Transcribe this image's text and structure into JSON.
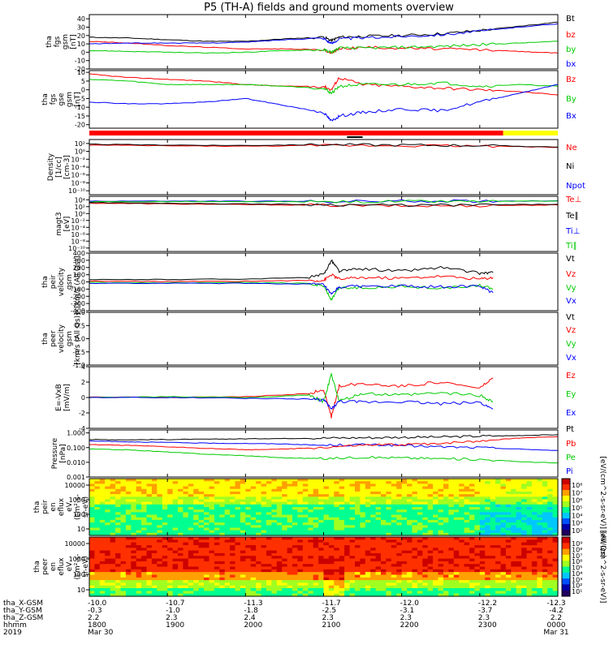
{
  "title": "P5 (TH-A) fields and ground moments overview",
  "chart_data": [
    {
      "type": "line",
      "panel": "fgs-gsm",
      "ylabel_lines": [
        "tha",
        "fgs",
        "gsm",
        "[nT]"
      ],
      "ylim": [
        -20,
        45
      ],
      "yticks": [
        -20,
        -10,
        0,
        10,
        20,
        30,
        40
      ],
      "legend": [
        {
          "label": "Bt",
          "color": "#000000"
        },
        {
          "label": "bz",
          "color": "#ff0000"
        },
        {
          "label": "by",
          "color": "#00cc00"
        },
        {
          "label": "bx",
          "color": "#0000ff"
        }
      ],
      "x_hours": [
        18.0,
        18.5,
        19.0,
        19.5,
        20.0,
        20.5,
        21.0,
        21.1,
        21.2,
        21.5,
        22.0,
        22.5,
        23.0,
        23.5,
        24.0
      ],
      "series": [
        {
          "name": "Bt",
          "color": "#000000",
          "values": [
            18,
            17,
            15,
            13,
            13,
            16,
            18,
            14,
            18,
            19,
            20,
            22,
            26,
            31,
            36
          ]
        },
        {
          "name": "bz",
          "color": "#ff0000",
          "values": [
            13,
            11,
            8,
            6,
            4,
            4,
            3,
            -1,
            4,
            6,
            5,
            4,
            3,
            1,
            -1
          ]
        },
        {
          "name": "by",
          "color": "#00cc00",
          "values": [
            2,
            1,
            0,
            -1,
            0,
            2,
            3,
            0,
            5,
            5,
            6,
            7,
            9,
            11,
            13
          ]
        },
        {
          "name": "bx",
          "color": "#0000ff",
          "values": [
            10,
            11,
            11,
            11,
            12,
            15,
            17,
            10,
            16,
            17,
            19,
            21,
            25,
            30,
            34
          ]
        }
      ]
    },
    {
      "type": "line",
      "panel": "fgs-gse-gsm",
      "ylabel_lines": [
        "tha",
        "fgs",
        "gse",
        "gsm",
        "[nT]"
      ],
      "ylim": [
        -22,
        11
      ],
      "yticks": [
        -20,
        -15,
        -10,
        -5,
        0,
        5,
        10
      ],
      "legend": [
        {
          "label": "Bz",
          "color": "#ff0000"
        },
        {
          "label": "By",
          "color": "#00cc00"
        },
        {
          "label": "Bx",
          "color": "#0000ff"
        }
      ],
      "x_hours": [
        18.0,
        18.5,
        19.0,
        19.5,
        20.0,
        20.5,
        21.0,
        21.1,
        21.2,
        21.5,
        22.0,
        22.5,
        23.0,
        23.5,
        24.0
      ],
      "series": [
        {
          "name": "Bz",
          "color": "#ff0000",
          "values": [
            9,
            7,
            6,
            5,
            3,
            2,
            2,
            0,
            7,
            3,
            2,
            1,
            0,
            -1,
            -3
          ]
        },
        {
          "name": "By",
          "color": "#00cc00",
          "values": [
            6,
            5,
            3,
            3,
            3,
            2,
            1,
            -2,
            2,
            3,
            3,
            4,
            2,
            3,
            2
          ]
        },
        {
          "name": "Bx",
          "color": "#0000ff",
          "values": [
            -7,
            -8,
            -8,
            -7,
            -5,
            -9,
            -13,
            -18,
            -15,
            -13,
            -11,
            -12,
            -7,
            -2,
            3
          ]
        }
      ]
    },
    {
      "type": "line",
      "panel": "density",
      "ylabel_lines": [
        "Density",
        "[1/cc]",
        "[cm-3]"
      ],
      "yscale": "log",
      "ylim_exp": [
        -11,
        3
      ],
      "ytick_labels": [
        "10²",
        "10⁰",
        "10⁻²",
        "10⁻⁴",
        "10⁻⁶",
        "10⁻⁸",
        "10⁻¹⁰"
      ],
      "legend": [
        {
          "label": "Ne",
          "color": "#ff0000"
        },
        {
          "label": "Ni",
          "color": "#000000"
        },
        {
          "label": "Npot",
          "color": "#0000ff"
        }
      ],
      "x_hours": [
        18.0,
        19.0,
        20.0,
        21.0,
        22.0,
        23.0,
        24.0
      ],
      "series": [
        {
          "name": "Ne",
          "color": "#ff0000",
          "log10_values": [
            1.6,
            1.4,
            1.3,
            1.5,
            1.5,
            1.4,
            1.0
          ]
        },
        {
          "name": "Ni",
          "color": "#000000",
          "log10_values": [
            1.8,
            1.6,
            1.5,
            1.7,
            1.6,
            1.5,
            1.1
          ]
        }
      ]
    },
    {
      "type": "line",
      "panel": "temperature",
      "ylabel_lines": [
        "magt3",
        "[eV]"
      ],
      "yscale": "log",
      "ylim_exp": [
        -11,
        5
      ],
      "ytick_labels": [
        "10⁴",
        "10²",
        "10⁰",
        "10⁻²",
        "10⁻⁴",
        "10⁻⁶",
        "10⁻⁸",
        "10⁻¹⁰"
      ],
      "legend": [
        {
          "label": "Te⊥",
          "color": "#ff0000"
        },
        {
          "label": "Te∥",
          "color": "#000000"
        },
        {
          "label": "Ti⊥",
          "color": "#0000ff"
        },
        {
          "label": "Ti∥",
          "color": "#00cc00"
        }
      ],
      "x_hours": [
        18.0,
        19.0,
        20.0,
        21.0,
        22.0,
        23.0,
        24.0
      ],
      "series": [
        {
          "name": "Ti⊥",
          "color": "#0000ff",
          "log10_values": [
            3.6,
            3.6,
            3.6,
            3.5,
            3.6,
            3.6,
            3.7
          ]
        },
        {
          "name": "Ti∥",
          "color": "#00cc00",
          "log10_values": [
            3.4,
            3.5,
            3.4,
            3.4,
            3.5,
            3.5,
            3.6
          ]
        },
        {
          "name": "Te⊥",
          "color": "#ff0000",
          "log10_values": [
            3.0,
            2.8,
            2.6,
            2.4,
            2.2,
            2.3,
            2.5
          ]
        },
        {
          "name": "Te∥",
          "color": "#000000",
          "log10_values": [
            3.2,
            3.0,
            2.8,
            2.6,
            2.4,
            2.5,
            2.7
          ]
        }
      ]
    },
    {
      "type": "line",
      "panel": "peir-velocity",
      "ylabel_lines": [
        "tha",
        "peir",
        "velocity",
        "gsm",
        "[km/s (All Qs)]"
      ],
      "ylim": [
        -400,
        400
      ],
      "yticks": [
        -400,
        -300,
        -200,
        -100,
        0,
        100,
        200,
        300,
        400
      ],
      "legend": [
        {
          "label": "Vt",
          "color": "#000000"
        },
        {
          "label": "Vz",
          "color": "#ff0000"
        },
        {
          "label": "Vy",
          "color": "#00cc00"
        },
        {
          "label": "Vx",
          "color": "#0000ff"
        }
      ],
      "x_hours": [
        18.0,
        19.0,
        20.0,
        20.8,
        21.0,
        21.1,
        21.2,
        21.5,
        22.0,
        22.5,
        23.0,
        23.17
      ],
      "series": [
        {
          "name": "Vt",
          "color": "#000000",
          "values": [
            30,
            35,
            40,
            60,
            100,
            300,
            150,
            180,
            150,
            200,
            120,
            130
          ]
        },
        {
          "name": "Vz",
          "color": "#ff0000",
          "values": [
            10,
            5,
            10,
            20,
            20,
            100,
            40,
            60,
            50,
            80,
            40,
            60
          ]
        },
        {
          "name": "Vy",
          "color": "#00cc00",
          "values": [
            -10,
            -15,
            -10,
            -20,
            -50,
            -250,
            -80,
            -80,
            -60,
            -90,
            -50,
            -100
          ]
        },
        {
          "name": "Vx",
          "color": "#0000ff",
          "values": [
            -20,
            -20,
            -20,
            -30,
            -40,
            -180,
            -70,
            -60,
            -60,
            -70,
            -60,
            -150
          ]
        }
      ]
    },
    {
      "type": "line",
      "panel": "peer-velocity",
      "ylabel_lines": [
        "tha",
        "peer",
        "velocity",
        "gsm",
        "[km/s (All Qs)]"
      ],
      "ylim": [
        -1.0,
        1.0
      ],
      "yticks": [
        -1.0,
        -0.5,
        0.0,
        0.5,
        1.0
      ],
      "ytick_labels": [
        "-1.0",
        "-0.5",
        "0.0",
        "0.5",
        "1.0"
      ],
      "legend": [
        {
          "label": "Vt",
          "color": "#000000"
        },
        {
          "label": "Vz",
          "color": "#ff0000"
        },
        {
          "label": "Vy",
          "color": "#00cc00"
        },
        {
          "label": "Vx",
          "color": "#0000ff"
        }
      ],
      "series": []
    },
    {
      "type": "line",
      "panel": "efield",
      "ylabel_lines": [
        "E=-VxB",
        "[mV/m]"
      ],
      "ylim": [
        -4,
        4
      ],
      "yticks": [
        -4,
        -2,
        0,
        2,
        4
      ],
      "legend": [
        {
          "label": "Ez",
          "color": "#ff0000"
        },
        {
          "label": "Ey",
          "color": "#00cc00"
        },
        {
          "label": "Ex",
          "color": "#0000ff"
        }
      ],
      "x_hours": [
        18.0,
        19.0,
        20.0,
        20.8,
        21.0,
        21.1,
        21.2,
        21.5,
        22.0,
        22.5,
        23.0,
        23.17
      ],
      "series": [
        {
          "name": "Ez",
          "color": "#ff0000",
          "values": [
            0.1,
            0.0,
            0.1,
            0.5,
            1.0,
            -2.5,
            1.5,
            1.8,
            1.5,
            2.0,
            1.2,
            2.5
          ]
        },
        {
          "name": "Ey",
          "color": "#00cc00",
          "values": [
            0.0,
            0.1,
            0.0,
            0.3,
            -0.5,
            3.0,
            -0.5,
            0.5,
            0.3,
            0.6,
            0.3,
            -0.5
          ]
        },
        {
          "name": "Ex",
          "color": "#0000ff",
          "values": [
            0.0,
            0.0,
            -0.1,
            -0.2,
            -0.3,
            -1.5,
            -0.5,
            -0.6,
            -0.5,
            -0.8,
            -0.6,
            -1.5
          ]
        }
      ]
    },
    {
      "type": "line",
      "panel": "pressure",
      "ylabel_lines": [
        "Pressure",
        "[nPa]"
      ],
      "yscale": "log",
      "ylim_exp": [
        -3,
        0.2
      ],
      "ytick_labels": [
        "1.000",
        "0.100",
        "0.010",
        "0.001"
      ],
      "legend": [
        {
          "label": "Pt",
          "color": "#000000"
        },
        {
          "label": "Pb",
          "color": "#ff0000"
        },
        {
          "label": "Pe",
          "color": "#00cc00"
        },
        {
          "label": "Pi",
          "color": "#0000ff"
        }
      ],
      "x_hours": [
        18.0,
        18.5,
        19.0,
        19.5,
        20.0,
        20.5,
        21.0,
        21.5,
        22.0,
        22.5,
        23.0,
        23.5,
        24.0
      ],
      "series": [
        {
          "name": "Pt",
          "color": "#000000",
          "log10_values": [
            -0.45,
            -0.47,
            -0.45,
            -0.43,
            -0.4,
            -0.38,
            -0.35,
            -0.33,
            -0.3,
            -0.28,
            -0.22,
            -0.18,
            -0.12
          ]
        },
        {
          "name": "Pi",
          "color": "#0000ff",
          "log10_values": [
            -0.55,
            -0.6,
            -0.65,
            -0.7,
            -0.72,
            -0.75,
            -0.85,
            -0.8,
            -0.85,
            -0.95,
            -1.0,
            -1.1,
            -1.2
          ]
        },
        {
          "name": "Pb",
          "color": "#ff0000",
          "log10_values": [
            -0.8,
            -0.85,
            -0.95,
            -1.05,
            -1.15,
            -1.1,
            -1.0,
            -0.85,
            -0.8,
            -0.7,
            -0.55,
            -0.35,
            -0.25
          ]
        },
        {
          "name": "Pe",
          "color": "#00cc00",
          "log10_values": [
            -1.1,
            -1.15,
            -1.3,
            -1.45,
            -1.55,
            -1.7,
            -1.75,
            -1.65,
            -1.7,
            -1.75,
            -1.8,
            -1.95,
            -2.05
          ]
        }
      ]
    },
    {
      "type": "heatmap",
      "panel": "peir-eflux",
      "ylabel_lines": [
        "tha",
        "peir",
        "en",
        "eflux",
        "eV",
        "(cm²-s-",
        "sr-eV)"
      ],
      "yscale": "log",
      "ytick_labels": [
        "10",
        "100",
        "1000",
        "10000"
      ],
      "colorbar_label": "[eV/(cm^2-s-sr-eV)] (All Qs)",
      "colorbar_ticks": [
        "10⁸",
        "10⁷",
        "10⁶",
        "10⁵",
        "10⁴",
        "10³",
        "10²"
      ]
    },
    {
      "type": "heatmap",
      "panel": "peer-eflux",
      "ylabel_lines": [
        "tha",
        "peer",
        "en",
        "eflux",
        "eV",
        "(cm²-s-",
        "sr-eV)"
      ],
      "yscale": "log",
      "ytick_labels": [
        "10",
        "100",
        "1000",
        "10000"
      ],
      "colorbar_label": "[eV/(cm^2-s-sr-eV)]",
      "colorbar_ticks": [
        "10⁹",
        "10⁸",
        "10⁷",
        "10⁶",
        "10⁵",
        "10⁴",
        "10³",
        "10²",
        "10¹"
      ]
    }
  ],
  "axis": {
    "row_labels": [
      "tha_X-GSM",
      "tha_Y-GSM",
      "tha_Z-GSM",
      "hhmm",
      "2019"
    ],
    "ticks": [
      {
        "x": "-10.0",
        "y": "-0.3",
        "z": "2.2",
        "t": "1800",
        "d": "Mar 30"
      },
      {
        "x": "-10.7",
        "y": "-1.0",
        "z": "2.3",
        "t": "1900",
        "d": ""
      },
      {
        "x": "-11.3",
        "y": "-1.8",
        "z": "2.4",
        "t": "2000",
        "d": ""
      },
      {
        "x": "-11.7",
        "y": "-2.5",
        "z": "2.3",
        "t": "2100",
        "d": ""
      },
      {
        "x": "-12.0",
        "y": "-3.1",
        "z": "2.3",
        "t": "2200",
        "d": ""
      },
      {
        "x": "-12.2",
        "y": "-3.7",
        "z": "2.3",
        "t": "2300",
        "d": ""
      },
      {
        "x": "-12.3",
        "y": "-4.2",
        "z": "2.2",
        "t": "0000",
        "d": "Mar 31"
      }
    ]
  },
  "colors": {
    "status_red": "#ff0000",
    "status_yellow": "#ffff00"
  }
}
